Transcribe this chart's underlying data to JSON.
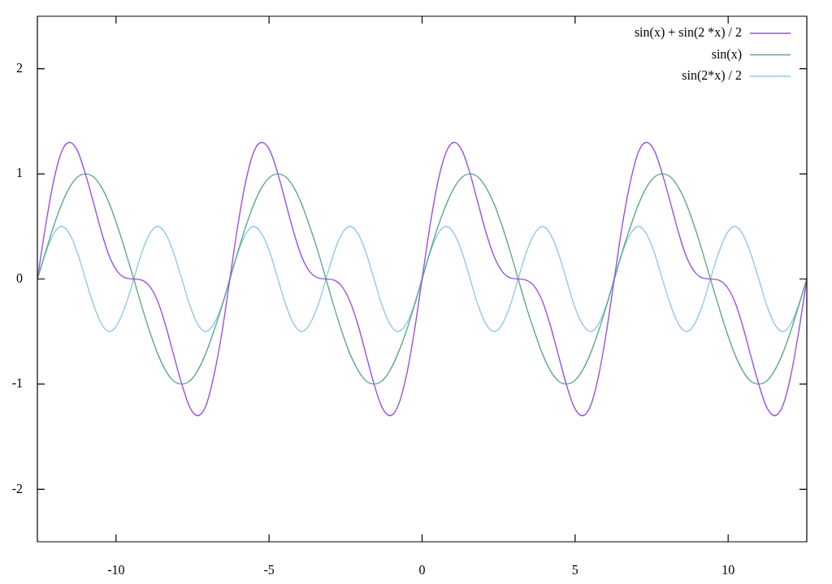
{
  "chart_data": {
    "type": "line",
    "x": [
      -12.57,
      -12.3,
      -12.04,
      -11.78,
      -11.52,
      -11.26,
      -11.0,
      -10.73,
      -10.47,
      -10.21,
      -9.95,
      -9.69,
      -9.42,
      -9.16,
      -8.9,
      -8.64,
      -8.38,
      -8.12,
      -7.85,
      -7.59,
      -7.33,
      -7.07,
      -6.81,
      -6.54,
      -6.28,
      -6.02,
      -5.76,
      -5.5,
      -5.24,
      -4.97,
      -4.71,
      -4.45,
      -4.19,
      -3.93,
      -3.67,
      -3.4,
      -3.14,
      -2.88,
      -2.62,
      -2.36,
      -2.09,
      -1.83,
      -1.57,
      -1.31,
      -1.05,
      -0.79,
      -0.52,
      -0.26,
      0,
      0.26,
      0.52,
      0.79,
      1.05,
      1.31,
      1.57,
      1.83,
      2.09,
      2.36,
      2.62,
      2.88,
      3.14,
      3.4,
      3.67,
      3.93,
      4.19,
      4.45,
      4.71,
      4.97,
      5.24,
      5.5,
      5.76,
      6.02,
      6.28,
      6.54,
      6.81,
      7.07,
      7.33,
      7.59,
      7.85,
      8.12,
      8.38,
      8.64,
      8.9,
      9.16,
      9.42,
      9.69,
      9.95,
      10.21,
      10.47,
      10.73,
      11.0,
      11.26,
      11.52,
      11.78,
      12.04,
      12.3,
      12.57
    ],
    "series": [
      {
        "name": "sin(x) + sin(2 *x) / 2",
        "color": "#9b4fe3",
        "values": [
          0,
          0.51,
          0.93,
          1.21,
          1.3,
          1.22,
          1,
          0.72,
          0.44,
          0.21,
          0.07,
          0.01,
          0,
          -0.01,
          -0.07,
          -0.21,
          -0.44,
          -0.72,
          -1,
          -1.22,
          -1.3,
          -1.21,
          -0.93,
          -0.51,
          0,
          0.51,
          0.93,
          1.21,
          1.3,
          1.22,
          1,
          0.72,
          0.44,
          0.21,
          0.07,
          0.01,
          0,
          -0.01,
          -0.07,
          -0.21,
          -0.44,
          -0.72,
          -1,
          -1.22,
          -1.3,
          -1.21,
          -0.93,
          -0.51,
          0,
          0.51,
          0.93,
          1.21,
          1.3,
          1.22,
          1,
          0.72,
          0.44,
          0.21,
          0.07,
          0.01,
          0,
          -0.01,
          -0.07,
          -0.21,
          -0.44,
          -0.72,
          -1,
          -1.22,
          -1.3,
          -1.21,
          -0.93,
          -0.51,
          0,
          0.51,
          0.93,
          1.21,
          1.3,
          1.22,
          1,
          0.72,
          0.44,
          0.21,
          0.07,
          0.01,
          0,
          -0.01,
          -0.07,
          -0.21,
          -0.44,
          -0.72,
          -1,
          -1.22,
          -1.3,
          -1.21,
          -0.93,
          -0.51,
          0
        ]
      },
      {
        "name": "sin(x)",
        "color": "#5fa98a",
        "values": [
          0,
          0.26,
          0.5,
          0.71,
          0.87,
          0.97,
          1,
          0.97,
          0.87,
          0.71,
          0.5,
          0.26,
          0,
          -0.26,
          -0.5,
          -0.71,
          -0.87,
          -0.97,
          -1,
          -0.97,
          -0.87,
          -0.71,
          -0.5,
          -0.26,
          0,
          0.26,
          0.5,
          0.71,
          0.87,
          0.97,
          1,
          0.97,
          0.87,
          0.71,
          0.5,
          0.26,
          0,
          -0.26,
          -0.5,
          -0.71,
          -0.87,
          -0.97,
          -1,
          -0.97,
          -0.87,
          -0.71,
          -0.5,
          -0.26,
          0,
          0.26,
          0.5,
          0.71,
          0.87,
          0.97,
          1,
          0.97,
          0.87,
          0.71,
          0.5,
          0.26,
          0,
          -0.26,
          -0.5,
          -0.71,
          -0.87,
          -0.97,
          -1,
          -0.97,
          -0.87,
          -0.71,
          -0.5,
          -0.26,
          0,
          0.26,
          0.5,
          0.71,
          0.87,
          0.97,
          1,
          0.97,
          0.87,
          0.71,
          0.5,
          0.26,
          0,
          -0.26,
          -0.5,
          -0.71,
          -0.87,
          -0.97,
          -1,
          -0.97,
          -0.87,
          -0.71,
          -0.5,
          -0.26,
          0
        ]
      },
      {
        "name": "sin(2*x) / 2",
        "color": "#8ecaee",
        "values": [
          0,
          0.25,
          0.43,
          0.5,
          0.43,
          0.25,
          0,
          -0.25,
          -0.43,
          -0.5,
          -0.43,
          -0.25,
          0,
          0.25,
          0.43,
          0.5,
          0.43,
          0.25,
          0,
          -0.25,
          -0.43,
          -0.5,
          -0.43,
          -0.25,
          0,
          0.25,
          0.43,
          0.5,
          0.43,
          0.25,
          0,
          -0.25,
          -0.43,
          -0.5,
          -0.43,
          -0.25,
          0,
          0.25,
          0.43,
          0.5,
          0.43,
          0.25,
          0,
          -0.25,
          -0.43,
          -0.5,
          -0.43,
          -0.25,
          0,
          0.25,
          0.43,
          0.5,
          0.43,
          0.25,
          0,
          -0.25,
          -0.43,
          -0.5,
          -0.43,
          -0.25,
          0,
          0.25,
          0.43,
          0.5,
          0.43,
          0.25,
          0,
          -0.25,
          -0.43,
          -0.5,
          -0.43,
          -0.25,
          0,
          0.25,
          0.43,
          0.5,
          0.43,
          0.25,
          0,
          -0.25,
          -0.43,
          -0.5,
          -0.43,
          -0.25,
          0,
          0.25,
          0.43,
          0.5,
          0.43,
          0.25,
          0,
          -0.25,
          -0.43,
          -0.5,
          -0.43,
          -0.25,
          0
        ]
      }
    ],
    "xlim": [
      -12.57,
      12.57
    ],
    "xticks": [
      -10,
      -5,
      0,
      5,
      10
    ],
    "ylim": [
      -2.5,
      2.5
    ],
    "yticks": [
      -2,
      -1,
      0,
      1,
      2
    ],
    "legend": "top right",
    "line_style": "solid"
  }
}
